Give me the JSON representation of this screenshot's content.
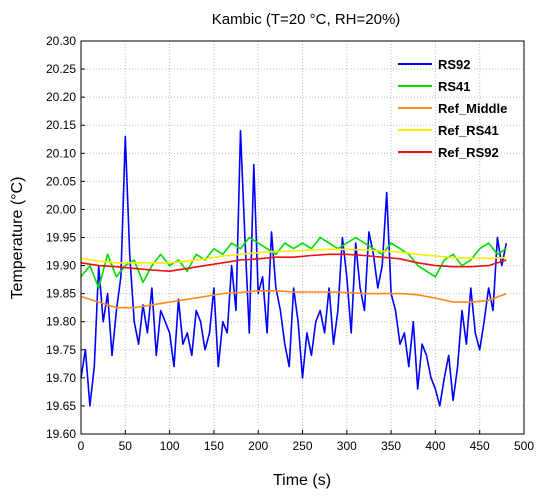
{
  "chart_data": {
    "type": "line",
    "title": "Kambic (T=20 °C, RH=20%)",
    "xlabel": "Time (s)",
    "ylabel": "Temperature (°C)",
    "xlim": [
      0,
      500
    ],
    "ylim": [
      19.6,
      20.3
    ],
    "xticks": [
      "0",
      "50",
      "100",
      "150",
      "200",
      "250",
      "300",
      "350",
      "400",
      "450",
      "500"
    ],
    "yticks": [
      "19.60",
      "19.65",
      "19.70",
      "19.75",
      "19.80",
      "19.85",
      "19.90",
      "19.95",
      "20.00",
      "20.05",
      "20.10",
      "20.15",
      "20.20",
      "20.25",
      "20.30"
    ],
    "grid": true,
    "legend_position": "top-right",
    "series": [
      {
        "name": "RS92",
        "color": "#0000ff",
        "x": [
          0,
          5,
          10,
          15,
          20,
          25,
          30,
          35,
          40,
          45,
          50,
          55,
          60,
          65,
          70,
          75,
          80,
          85,
          90,
          95,
          100,
          105,
          110,
          115,
          120,
          125,
          130,
          135,
          140,
          145,
          150,
          155,
          160,
          165,
          170,
          175,
          180,
          185,
          190,
          195,
          200,
          205,
          210,
          215,
          220,
          225,
          230,
          235,
          240,
          245,
          250,
          255,
          260,
          265,
          270,
          275,
          280,
          285,
          290,
          295,
          300,
          305,
          310,
          315,
          320,
          325,
          330,
          335,
          340,
          345,
          350,
          355,
          360,
          365,
          370,
          375,
          380,
          385,
          390,
          395,
          400,
          405,
          410,
          415,
          420,
          425,
          430,
          435,
          440,
          445,
          450,
          455,
          460,
          465,
          470,
          475,
          480
        ],
        "y": [
          19.7,
          19.75,
          19.65,
          19.72,
          19.9,
          19.8,
          19.85,
          19.74,
          19.82,
          19.88,
          20.13,
          19.92,
          19.8,
          19.76,
          19.83,
          19.78,
          19.86,
          19.74,
          19.82,
          19.8,
          19.78,
          19.72,
          19.84,
          19.76,
          19.78,
          19.74,
          19.82,
          19.8,
          19.75,
          19.78,
          19.86,
          19.72,
          19.8,
          19.78,
          19.9,
          19.82,
          20.14,
          19.95,
          19.78,
          20.08,
          19.85,
          19.88,
          19.78,
          19.96,
          19.86,
          19.82,
          19.76,
          19.72,
          19.86,
          19.8,
          19.7,
          19.78,
          19.74,
          19.8,
          19.82,
          19.78,
          19.86,
          19.76,
          19.82,
          19.95,
          19.88,
          19.78,
          19.94,
          19.86,
          19.82,
          19.96,
          19.92,
          19.86,
          19.9,
          20.03,
          19.85,
          19.82,
          19.76,
          19.78,
          19.72,
          19.8,
          19.68,
          19.76,
          19.74,
          19.7,
          19.68,
          19.65,
          19.7,
          19.74,
          19.66,
          19.72,
          19.82,
          19.76,
          19.86,
          19.78,
          19.75,
          19.8,
          19.86,
          19.82,
          19.95,
          19.9,
          19.94
        ]
      },
      {
        "name": "RS41",
        "color": "#00dd00",
        "x": [
          0,
          10,
          20,
          30,
          40,
          50,
          60,
          70,
          80,
          90,
          100,
          110,
          120,
          130,
          140,
          150,
          160,
          170,
          180,
          190,
          200,
          210,
          220,
          230,
          240,
          250,
          260,
          270,
          280,
          290,
          300,
          310,
          320,
          330,
          340,
          350,
          360,
          370,
          380,
          390,
          400,
          410,
          420,
          430,
          440,
          450,
          460,
          470,
          480
        ],
        "y": [
          19.88,
          19.9,
          19.86,
          19.92,
          19.88,
          19.9,
          19.91,
          19.87,
          19.9,
          19.92,
          19.9,
          19.91,
          19.89,
          19.92,
          19.91,
          19.93,
          19.92,
          19.94,
          19.93,
          19.95,
          19.94,
          19.93,
          19.92,
          19.94,
          19.93,
          19.94,
          19.93,
          19.95,
          19.94,
          19.93,
          19.94,
          19.95,
          19.94,
          19.93,
          19.92,
          19.94,
          19.93,
          19.92,
          19.9,
          19.89,
          19.88,
          19.91,
          19.92,
          19.9,
          19.91,
          19.93,
          19.94,
          19.92,
          19.93
        ]
      },
      {
        "name": "Ref_Middle",
        "color": "#ff8c1a",
        "x": [
          0,
          20,
          40,
          60,
          80,
          100,
          120,
          140,
          160,
          180,
          200,
          220,
          240,
          260,
          280,
          300,
          320,
          340,
          360,
          380,
          400,
          420,
          440,
          460,
          480
        ],
        "y": [
          19.845,
          19.835,
          19.825,
          19.825,
          19.83,
          19.835,
          19.84,
          19.845,
          19.85,
          19.852,
          19.855,
          19.855,
          19.853,
          19.853,
          19.853,
          19.852,
          19.85,
          19.85,
          19.85,
          19.848,
          19.842,
          19.835,
          19.835,
          19.838,
          19.85
        ]
      },
      {
        "name": "Ref_RS41",
        "color": "#ffee00",
        "x": [
          0,
          20,
          40,
          60,
          80,
          100,
          120,
          140,
          160,
          180,
          200,
          220,
          240,
          260,
          280,
          300,
          320,
          340,
          360,
          380,
          400,
          420,
          440,
          460,
          480
        ],
        "y": [
          19.913,
          19.908,
          19.905,
          19.905,
          19.905,
          19.905,
          19.908,
          19.912,
          19.917,
          19.92,
          19.923,
          19.925,
          19.926,
          19.928,
          19.929,
          19.929,
          19.928,
          19.926,
          19.924,
          19.92,
          19.917,
          19.914,
          19.913,
          19.913,
          19.914
        ]
      },
      {
        "name": "Ref_RS92",
        "color": "#ee1111",
        "x": [
          0,
          20,
          40,
          60,
          80,
          100,
          120,
          140,
          160,
          180,
          200,
          220,
          240,
          260,
          280,
          300,
          320,
          340,
          360,
          380,
          400,
          420,
          440,
          460,
          480
        ],
        "y": [
          19.905,
          19.9,
          19.898,
          19.895,
          19.892,
          19.89,
          19.895,
          19.9,
          19.905,
          19.91,
          19.912,
          19.915,
          19.915,
          19.918,
          19.92,
          19.92,
          19.918,
          19.915,
          19.912,
          19.905,
          19.9,
          19.898,
          19.898,
          19.9,
          19.91
        ]
      }
    ]
  }
}
